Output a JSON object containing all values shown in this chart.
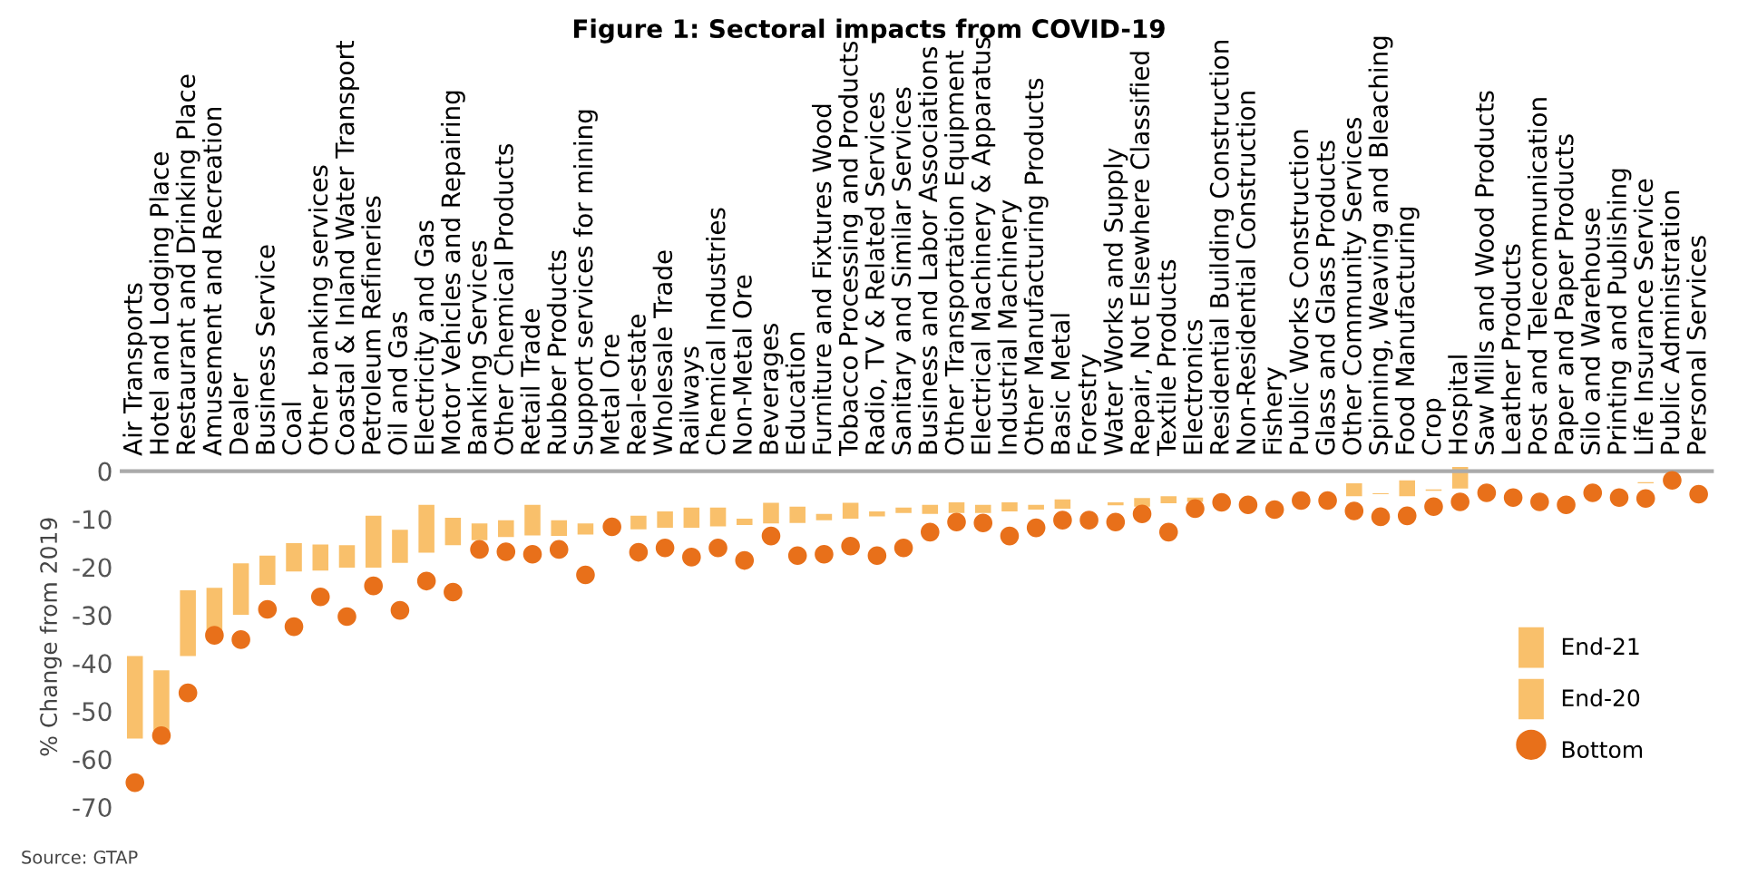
{
  "chart_data": {
    "type": "bar",
    "title": "Figure 1: Sectoral impacts from COVID-19",
    "ylabel": "% Change from 2019",
    "categories": [
      "Air Transports",
      "Hotel and Lodging Place",
      "Restaurant and Drinking Place",
      "Amusement and Recreation",
      "Dealer",
      "Business Service",
      "Coal",
      "Other banking services",
      "Coastal & Inland Water Transport",
      "Petroleum Refineries",
      "Oil and Gas",
      "Electricity and Gas",
      "Motor Vehicles and Repairing",
      "Banking Services",
      "Other Chemical Products",
      "Retail Trade",
      "Rubber Products",
      "Support services for mining",
      "Metal Ore",
      "Real-estate",
      "Wholesale Trade",
      "Railways",
      "Chemical Industries",
      "Non-Metal Ore",
      "Beverages",
      "Education",
      "Furniture and Fixtures Wood",
      "Tobacco Processing and Products",
      "Radio, TV & Related Services",
      "Sanitary and Similar Services",
      "Business and Labor Associations",
      "Other Transportation Equipment",
      "Electrical Machinery & Apparatus",
      "Industrial Machinery",
      "Other Manufacturing Products",
      "Basic Metal",
      "Forestry",
      "Water Works and Supply",
      "Repair, Not Elsewhere Classified",
      "Textile Products",
      "Electronics",
      "Residential Building Construction",
      "Non-Residential Construction",
      "Fishery",
      "Public Works Construction",
      "Glass and Glass Products",
      "Other Community Services",
      "Spinning, Weaving and Bleaching",
      "Food Manufacturing",
      "Crop",
      "Hospital",
      "Saw Mills and Wood Products",
      "Leather Products",
      "Post and Telecommunication",
      "Paper and Paper Products",
      "Silo and Warehouse",
      "Printing and Publishing",
      "Life Insurance Service",
      "Public Administration",
      "Personal Services"
    ],
    "series": [
      {
        "name": "End-21",
        "color": "#f9c06b",
        "base": [
          -55.7,
          -55.5,
          -38.5,
          -34.1,
          -29.9,
          -23.7,
          -20.9,
          -20.7,
          -20.1,
          -20.1,
          -19.1,
          -17.0,
          -15.4,
          -14.4,
          -13.7,
          -13.4,
          -13.5,
          -13.2,
          null,
          -12.1,
          -11.8,
          -11.8,
          -11.5,
          -11.2,
          -10.9,
          -10.8,
          -10.2,
          -9.9,
          -9.4,
          -8.7,
          -8.9,
          -8.7,
          -8.7,
          -8.4,
          -8.0,
          -7.8,
          null,
          -7.1,
          -7.4,
          -6.7,
          -6.4,
          null,
          null,
          null,
          null,
          null,
          -5.2,
          -4.8,
          -5.2,
          -4.1,
          -3.6,
          null,
          null,
          null,
          null,
          null,
          null,
          -2.5,
          null,
          null
        ],
        "values": [
          17.2,
          14.0,
          13.7,
          9.8,
          10.7,
          6.1,
          5.9,
          5.4,
          4.7,
          10.8,
          6.9,
          10.0,
          5.7,
          3.5,
          3.5,
          6.4,
          3.3,
          2.3,
          null,
          2.8,
          3.4,
          4.2,
          3.9,
          1.3,
          4.3,
          3.4,
          1.3,
          3.3,
          1.0,
          1.1,
          1.9,
          2.2,
          1.7,
          1.9,
          1.0,
          1.9,
          null,
          0.6,
          1.8,
          1.5,
          0.9,
          null,
          null,
          null,
          null,
          null,
          2.7,
          0.2,
          3.3,
          0.3,
          4.5,
          null,
          null,
          null,
          null,
          null,
          null,
          0.2,
          null,
          null
        ]
      },
      {
        "name": "Bottom",
        "type": "scatter",
        "color": "#e8701a",
        "marker": "circle",
        "values": [
          -64.9,
          -55.1,
          -46.2,
          -34.2,
          -35.1,
          -28.8,
          -32.4,
          -26.2,
          -30.3,
          -23.9,
          -29.0,
          -22.9,
          -25.2,
          -16.3,
          -16.8,
          -17.3,
          -16.3,
          -21.6,
          -11.6,
          -16.9,
          -16.0,
          -17.9,
          -16.0,
          -18.6,
          -13.5,
          -17.6,
          -17.3,
          -15.6,
          -17.6,
          -16.0,
          -12.7,
          -10.6,
          -10.8,
          -13.5,
          -11.8,
          -10.2,
          -10.2,
          -10.6,
          -8.9,
          -12.7,
          -7.8,
          -6.5,
          -7.0,
          -8.0,
          -6.1,
          -6.1,
          -8.3,
          -9.5,
          -9.3,
          -7.4,
          -6.4,
          -4.5,
          -5.5,
          -6.4,
          -7.0,
          -4.5,
          -5.5,
          -5.7,
          -1.9,
          -4.8
        ]
      }
    ],
    "ylim": [
      -70,
      1
    ],
    "yticks": [
      0,
      -10,
      -20,
      -30,
      -40,
      -50,
      -60,
      -70
    ],
    "grid": false,
    "legend": "right",
    "annotations": [
      "Source: GTAP",
      "End-20"
    ]
  }
}
